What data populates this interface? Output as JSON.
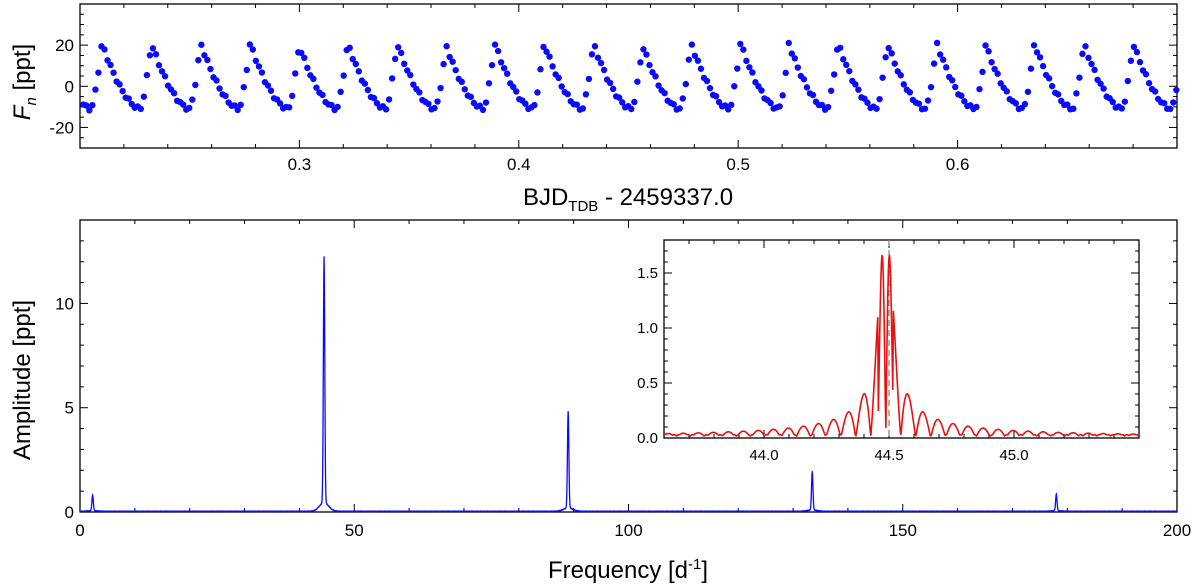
{
  "chart_data": [
    {
      "type": "scatter",
      "xlabel": "BJD",
      "xlabel_sub": "TDB",
      "xlabel_suffix": " - 2459337.0",
      "ylabel": "F",
      "ylabel_sub": "n",
      "ylabel_suffix": " [ppt]",
      "xlim": [
        0.2,
        0.7
      ],
      "ylim": [
        -30,
        40
      ],
      "xticks": [
        "0.3",
        "0.4",
        "0.5",
        "0.6"
      ],
      "yticks": [
        "-20",
        "0",
        "20"
      ],
      "color": "#0a0aff",
      "pulsation_frequency_cpd": 44.5,
      "peak_times": [
        0.21,
        0.2325,
        0.255,
        0.2775,
        0.2995,
        0.322,
        0.3445,
        0.3665,
        0.389,
        0.4115,
        0.434,
        0.456,
        0.4785,
        0.501,
        0.523,
        0.5455,
        0.568,
        0.5905,
        0.6125,
        0.635,
        0.6575,
        0.68
      ],
      "y_max": 21,
      "y_min": -11
    },
    {
      "type": "line",
      "xlabel": "Frequency [d",
      "xlabel_sup": "-1",
      "xlabel_suffix": "]",
      "ylabel": "Amplitude [ppt]",
      "xlim": [
        0,
        200
      ],
      "ylim": [
        0,
        14
      ],
      "xticks": [
        "0",
        "50",
        "100",
        "150",
        "200"
      ],
      "yticks": [
        "0",
        "5",
        "10"
      ],
      "color": "#0a0aff",
      "peaks": [
        {
          "frequency": 2.3,
          "amplitude": 0.75
        },
        {
          "frequency": 44.5,
          "amplitude": 11.8
        },
        {
          "frequency": 89.0,
          "amplitude": 4.65
        },
        {
          "frequency": 133.5,
          "amplitude": 1.85
        },
        {
          "frequency": 178.0,
          "amplitude": 0.8
        }
      ]
    },
    {
      "type": "line",
      "role": "inset",
      "xlim": [
        43.6,
        45.5
      ],
      "ylim": [
        0,
        1.8
      ],
      "xticks": [
        "44.0",
        "44.5",
        "45.0"
      ],
      "yticks": [
        "0.0",
        "0.5",
        "1.0",
        "1.5"
      ],
      "color": "#e81010",
      "dashed_line_x": 44.5,
      "lobes": [
        {
          "frequency": 44.447,
          "amplitude": 1.73
        },
        {
          "frequency": 44.527,
          "amplitude": 1.7
        },
        {
          "frequency": 44.39,
          "amplitude": 0.62
        },
        {
          "frequency": 44.585,
          "amplitude": 0.66
        },
        {
          "frequency": 44.34,
          "amplitude": 0.36
        },
        {
          "frequency": 44.645,
          "amplitude": 0.36
        },
        {
          "frequency": 44.73,
          "amplitude": 0.29
        },
        {
          "frequency": 44.27,
          "amplitude": 0.2
        }
      ]
    }
  ]
}
